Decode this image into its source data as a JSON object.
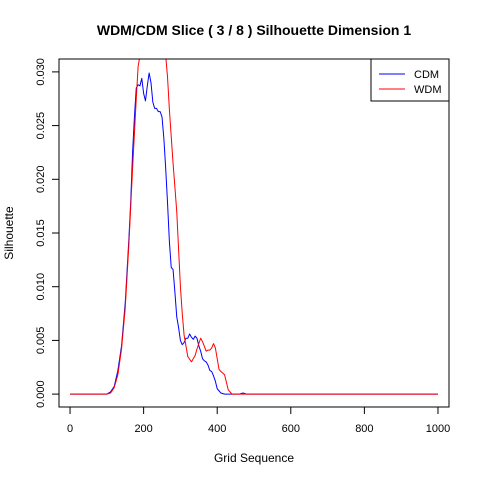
{
  "chart_data": {
    "type": "line",
    "title": "WDM/CDM Slice ( 3 / 8 )  Silhouette Dimension 1",
    "xlabel": "Grid Sequence",
    "ylabel": "Silhouette",
    "xlim": [
      -30,
      1030
    ],
    "ylim": [
      -0.0012,
      0.0312
    ],
    "xticks": [
      0,
      200,
      400,
      600,
      800,
      1000
    ],
    "yticks": [
      0.0,
      0.005,
      0.01,
      0.015,
      0.02,
      0.025,
      0.03
    ],
    "xtick_labels": [
      "0",
      "200",
      "400",
      "600",
      "800",
      "1000"
    ],
    "ytick_labels": [
      "0.000",
      "0.005",
      "0.010",
      "0.015",
      "0.020",
      "0.025",
      "0.030"
    ],
    "grid": false,
    "legend_position": "top-right",
    "series": [
      {
        "name": "CDM",
        "color": "#0000ff",
        "x": [
          0,
          100,
          110,
          120,
          130,
          140,
          150,
          160,
          165,
          170,
          175,
          180,
          185,
          190,
          195,
          200,
          205,
          210,
          215,
          220,
          225,
          230,
          235,
          240,
          245,
          250,
          255,
          260,
          265,
          270,
          275,
          280,
          285,
          290,
          295,
          300,
          305,
          310,
          315,
          320,
          325,
          330,
          335,
          340,
          345,
          350,
          355,
          360,
          365,
          370,
          375,
          380,
          385,
          390,
          395,
          400,
          410,
          420,
          430,
          440,
          460,
          470,
          480,
          1000
        ],
        "y": [
          0.0,
          0.0,
          0.0002,
          0.0007,
          0.0022,
          0.0045,
          0.0085,
          0.0145,
          0.018,
          0.0225,
          0.0258,
          0.0285,
          0.0288,
          0.0287,
          0.0294,
          0.028,
          0.0273,
          0.0287,
          0.0299,
          0.029,
          0.0272,
          0.0266,
          0.0266,
          0.0263,
          0.0263,
          0.0258,
          0.0238,
          0.021,
          0.0178,
          0.0142,
          0.0118,
          0.0116,
          0.0095,
          0.0072,
          0.0062,
          0.005,
          0.0046,
          0.0048,
          0.0052,
          0.0052,
          0.0056,
          0.0053,
          0.0051,
          0.0054,
          0.0052,
          0.0045,
          0.004,
          0.0033,
          0.0031,
          0.003,
          0.0027,
          0.0022,
          0.0021,
          0.0017,
          0.0012,
          0.0005,
          0.0001,
          0.0,
          0.0,
          0.0,
          0.0,
          0.0001,
          0.0,
          0.0
        ]
      },
      {
        "name": "WDM",
        "color": "#ff0000",
        "x": [
          0,
          100,
          110,
          120,
          130,
          140,
          150,
          160,
          170,
          180,
          185,
          190,
          200,
          210,
          220,
          230,
          240,
          250,
          255,
          260,
          265,
          270,
          280,
          290,
          300,
          305,
          310,
          320,
          330,
          340,
          345,
          350,
          355,
          360,
          370,
          375,
          380,
          385,
          390,
          395,
          400,
          405,
          410,
          420,
          430,
          440,
          460,
          480,
          1000
        ],
        "y": [
          0.0,
          0.0,
          0.0001,
          0.0006,
          0.0018,
          0.0042,
          0.008,
          0.014,
          0.021,
          0.0275,
          0.0305,
          0.0315,
          0.0318,
          0.0318,
          0.0318,
          0.0318,
          0.0318,
          0.0318,
          0.0318,
          0.0315,
          0.0295,
          0.0265,
          0.0215,
          0.017,
          0.01,
          0.0075,
          0.0055,
          0.0035,
          0.003,
          0.0036,
          0.0042,
          0.0047,
          0.0052,
          0.0049,
          0.004,
          0.0041,
          0.0041,
          0.0043,
          0.0047,
          0.0043,
          0.0033,
          0.0023,
          0.0021,
          0.0018,
          0.0004,
          0.0,
          0.0,
          0.0,
          0.0
        ]
      }
    ]
  }
}
